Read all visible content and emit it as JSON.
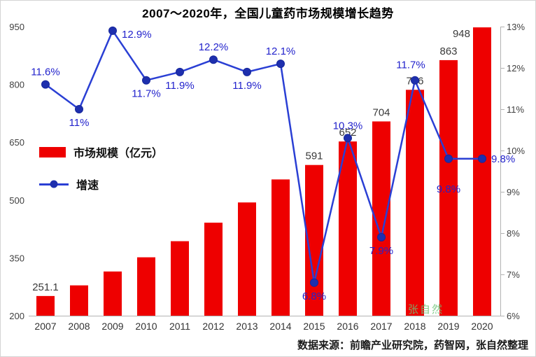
{
  "figure": {
    "title": "2007～2020年，全国儿童药市场规模增长趋势",
    "source": "数据来源：前瞻产业研究院，药智网，张自然整理",
    "watermark": "张自然"
  },
  "legend": {
    "bar_label": "市场规模（亿元）",
    "line_label": "增速"
  },
  "chart_data": {
    "type": "bar",
    "subtype": "bar+line dual axis",
    "title": "2007～2020年，全国儿童药市场规模增长趋势",
    "categories": [
      "2007",
      "2008",
      "2009",
      "2010",
      "2011",
      "2012",
      "2013",
      "2014",
      "2015",
      "2016",
      "2017",
      "2018",
      "2019",
      "2020"
    ],
    "series": [
      {
        "name": "市场规模（亿元）",
        "type": "bar",
        "axis": "left",
        "color": "#ee0000",
        "values": [
          251.1,
          278.7,
          314.7,
          351.5,
          393.3,
          441.3,
          493.8,
          553.5,
          591,
          652,
          704,
          786,
          863,
          948
        ],
        "labels": [
          "251.1",
          "",
          "",
          "",
          "",
          "",
          "",
          "",
          "591",
          "652",
          "704",
          "786",
          "863",
          "948"
        ]
      },
      {
        "name": "增速",
        "type": "line",
        "axis": "right",
        "color": "#2a3fd4",
        "marker_color": "#1e2fae",
        "label_color": "#2323cc",
        "values": [
          11.6,
          11,
          12.9,
          11.7,
          11.9,
          12.2,
          11.9,
          12.1,
          6.8,
          10.3,
          7.9,
          11.7,
          9.8,
          9.8
        ],
        "labels": [
          "11.6%",
          "11%",
          "12.9%",
          "11.7%",
          "11.9%",
          "12.2%",
          "11.9%",
          "12.1%",
          "6.8%",
          "10.3%",
          "7.9%",
          "11.7%",
          "9.8%",
          "9.8%"
        ]
      }
    ],
    "left_axis": {
      "min": 200,
      "max": 950,
      "step": 150,
      "ticks": [
        "200",
        "350",
        "500",
        "650",
        "800",
        "950"
      ]
    },
    "right_axis": {
      "min": 6,
      "max": 13,
      "step": 1,
      "ticks": [
        "6%",
        "7%",
        "8%",
        "9%",
        "10%",
        "11%",
        "12%",
        "13%"
      ]
    },
    "grid": false,
    "legend_position": "inside-left-middle"
  }
}
